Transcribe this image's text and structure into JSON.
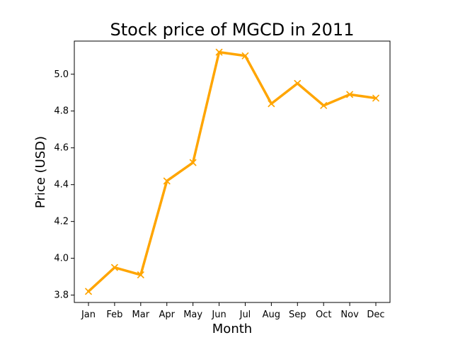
{
  "chart_data": {
    "type": "line",
    "title": "Stock price of MGCD in 2011",
    "xlabel": "Month",
    "ylabel": "Price (USD)",
    "categories": [
      "Jan",
      "Feb",
      "Mar",
      "Apr",
      "May",
      "Jun",
      "Jul",
      "Aug",
      "Sep",
      "Oct",
      "Nov",
      "Dec"
    ],
    "series": [
      {
        "values": [
          3.82,
          3.95,
          3.91,
          4.42,
          4.52,
          5.12,
          5.1,
          4.84,
          4.95,
          4.83,
          4.89,
          4.87
        ],
        "color": "#FFA500",
        "marker": "x"
      }
    ],
    "ylim": [
      3.76,
      5.18
    ],
    "yticks": [
      3.8,
      4.0,
      4.2,
      4.4,
      4.6,
      4.8,
      5.0
    ],
    "ytick_labels": [
      "3.8",
      "4.0",
      "4.2",
      "4.4",
      "4.6",
      "4.8",
      "5.0"
    ],
    "grid": false,
    "legend": "none"
  }
}
